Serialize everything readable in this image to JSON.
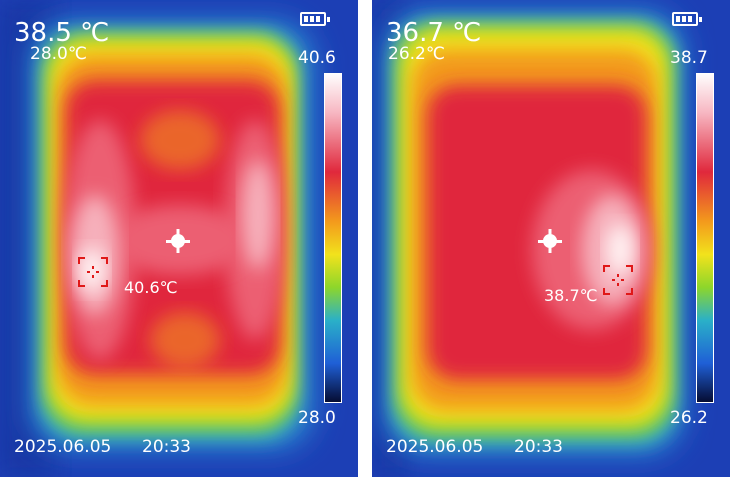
{
  "panels": [
    {
      "center_temp": "38.5 ℃",
      "min_temp": "28.0℃",
      "scale_max": "40.6",
      "scale_min": "28.0",
      "hot_spot_label": "40.6℃",
      "date": "2025.06.05",
      "time": "20:33",
      "battery_icon": "battery-full-icon"
    },
    {
      "center_temp": "36.7 ℃",
      "min_temp": "26.2℃",
      "scale_max": "38.7",
      "scale_min": "26.2",
      "hot_spot_label": "38.7℃",
      "date": "2025.06.05",
      "time": "20:33",
      "battery_icon": "battery-full-icon"
    }
  ],
  "palette": {
    "cold": "#0a1a6e",
    "cool": "#1f5fd6",
    "mid": "#2ab0c8",
    "green": "#8dd62b",
    "yellow": "#f2e21c",
    "orange": "#f39a1c",
    "red": "#e0283c",
    "hot": "#ffe8ea"
  }
}
